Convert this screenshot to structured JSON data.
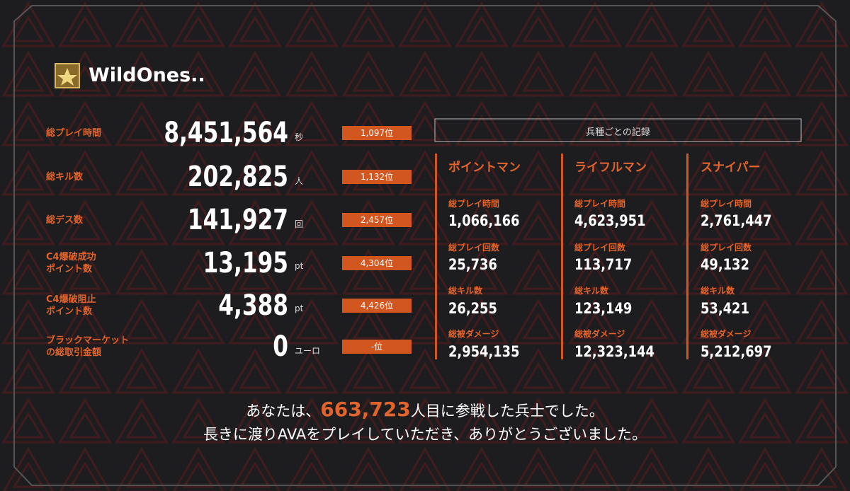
{
  "player": {
    "name": "WildOnes.."
  },
  "stats": [
    {
      "label": [
        "総プレイ時間"
      ],
      "value": "8,451,564",
      "unit": "秒",
      "rank": "1,097位"
    },
    {
      "label": [
        "総キル数"
      ],
      "value": "202,825",
      "unit": "人",
      "rank": "1,132位"
    },
    {
      "label": [
        "総デス数"
      ],
      "value": "141,927",
      "unit": "回",
      "rank": "2,457位"
    },
    {
      "label": [
        "C4爆破成功",
        "ポイント数"
      ],
      "value": "13,195",
      "unit": "pt",
      "rank": "4,304位"
    },
    {
      "label": [
        "C4爆破阻止",
        "ポイント数"
      ],
      "value": "4,388",
      "unit": "pt",
      "rank": "4,426位"
    },
    {
      "label": [
        "ブラックマーケット",
        "の総取引金額"
      ],
      "value": "0",
      "unit": "ユーロ",
      "rank": "-位"
    }
  ],
  "class_records": {
    "title": "兵種ごとの記録",
    "classes": [
      {
        "name": "ポイントマン",
        "stats": [
          {
            "label": "総プレイ時間",
            "value": "1,066,166"
          },
          {
            "label": "総プレイ回数",
            "value": "25,736"
          },
          {
            "label": "総キル数",
            "value": "26,255"
          },
          {
            "label": "総被ダメージ",
            "value": "2,954,135"
          }
        ]
      },
      {
        "name": "ライフルマン",
        "stats": [
          {
            "label": "総プレイ時間",
            "value": "4,623,951"
          },
          {
            "label": "総プレイ回数",
            "value": "113,717"
          },
          {
            "label": "総キル数",
            "value": "123,149"
          },
          {
            "label": "総被ダメージ",
            "value": "12,323,144"
          }
        ]
      },
      {
        "name": "スナイパー",
        "stats": [
          {
            "label": "総プレイ時間",
            "value": "2,761,447"
          },
          {
            "label": "総プレイ回数",
            "value": "49,132"
          },
          {
            "label": "総キル数",
            "value": "53,421"
          },
          {
            "label": "総被ダメージ",
            "value": "5,212,697"
          }
        ]
      }
    ]
  },
  "footer": {
    "line1": {
      "before": "あなたは、",
      "number": "663,723",
      "after": "人目に参戦した兵士でした。"
    },
    "line2": "長きに渡りAVAをプレイしていただき、ありがとうございました。"
  }
}
